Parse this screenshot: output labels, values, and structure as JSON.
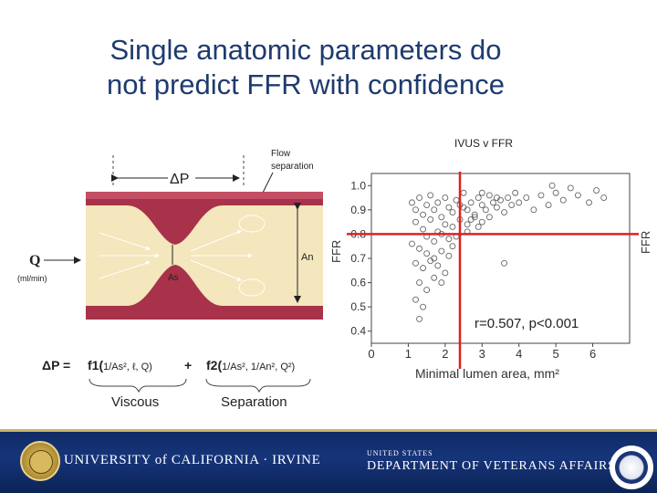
{
  "slide": {
    "title_line1": "Single anatomic parameters do",
    "title_line2": "not predict FFR with confidence",
    "caption": "IVUS v FFR"
  },
  "diagram": {
    "delta_p": "ΔP",
    "flow_label_1": "Flow",
    "flow_label_2": "separation",
    "q_symbol": "Q",
    "q_unit": "(ml/min)",
    "an_label": "An",
    "as_label": "As",
    "eq_lhs": "ΔP =",
    "eq_f1": "f1(",
    "eq_f1_args": "1/As², ℓ, Q)",
    "eq_plus": "+",
    "eq_f2": "f2(",
    "eq_f2_args": "1/As², 1/An², Q²)",
    "viscous": "Viscous",
    "separation": "Separation",
    "colors": {
      "wall": "#a8324a",
      "blood": "#f4e6bd"
    }
  },
  "chart_data": {
    "type": "scatter",
    "title": "",
    "xlabel": "Minimal lumen area, mm²",
    "ylabel": "FFR",
    "ylabel_right": "FFR",
    "xlim": [
      0,
      7
    ],
    "ylim": [
      0.35,
      1.05
    ],
    "x_ticks": [
      0,
      1,
      2,
      3,
      4,
      5,
      6
    ],
    "y_ticks": [
      0.4,
      0.5,
      0.6,
      0.7,
      0.8,
      0.9,
      1.0
    ],
    "y_tick_labels": [
      "0.4",
      "0.5",
      "0.6",
      "0.7",
      "0.8",
      "0.9",
      "1.0"
    ],
    "annotation": "r=0.507, p<0.001",
    "threshold_x": 2.4,
    "threshold_y": 0.8,
    "threshold_color": "#e02020",
    "grid": false,
    "points": [
      [
        1.1,
        0.93
      ],
      [
        1.2,
        0.9
      ],
      [
        1.3,
        0.95
      ],
      [
        1.4,
        0.88
      ],
      [
        1.5,
        0.92
      ],
      [
        1.6,
        0.96
      ],
      [
        1.7,
        0.9
      ],
      [
        1.8,
        0.93
      ],
      [
        1.9,
        0.87
      ],
      [
        2.0,
        0.95
      ],
      [
        2.1,
        0.91
      ],
      [
        2.2,
        0.89
      ],
      [
        2.3,
        0.94
      ],
      [
        2.4,
        0.92
      ],
      [
        2.5,
        0.97
      ],
      [
        2.6,
        0.9
      ],
      [
        2.7,
        0.93
      ],
      [
        2.8,
        0.88
      ],
      [
        2.9,
        0.95
      ],
      [
        3.0,
        0.92
      ],
      [
        3.1,
        0.9
      ],
      [
        3.2,
        0.96
      ],
      [
        3.3,
        0.93
      ],
      [
        3.4,
        0.91
      ],
      [
        3.5,
        0.94
      ],
      [
        3.6,
        0.89
      ],
      [
        3.7,
        0.95
      ],
      [
        3.8,
        0.92
      ],
      [
        3.9,
        0.97
      ],
      [
        4.0,
        0.93
      ],
      [
        4.2,
        0.95
      ],
      [
        4.4,
        0.9
      ],
      [
        4.6,
        0.96
      ],
      [
        4.8,
        0.92
      ],
      [
        5.0,
        0.97
      ],
      [
        5.2,
        0.94
      ],
      [
        5.4,
        0.99
      ],
      [
        5.6,
        0.96
      ],
      [
        5.9,
        0.93
      ],
      [
        6.1,
        0.98
      ],
      [
        6.3,
        0.95
      ],
      [
        4.9,
        1.0
      ],
      [
        1.2,
        0.85
      ],
      [
        1.4,
        0.82
      ],
      [
        1.6,
        0.86
      ],
      [
        1.8,
        0.81
      ],
      [
        2.0,
        0.84
      ],
      [
        2.2,
        0.83
      ],
      [
        2.4,
        0.86
      ],
      [
        2.6,
        0.84
      ],
      [
        2.8,
        0.87
      ],
      [
        3.0,
        0.85
      ],
      [
        1.5,
        0.79
      ],
      [
        1.7,
        0.77
      ],
      [
        1.9,
        0.8
      ],
      [
        2.1,
        0.78
      ],
      [
        2.3,
        0.79
      ],
      [
        2.6,
        0.81
      ],
      [
        1.1,
        0.76
      ],
      [
        1.3,
        0.74
      ],
      [
        1.5,
        0.72
      ],
      [
        1.7,
        0.7
      ],
      [
        1.9,
        0.73
      ],
      [
        2.1,
        0.71
      ],
      [
        1.2,
        0.68
      ],
      [
        1.4,
        0.66
      ],
      [
        1.6,
        0.69
      ],
      [
        1.8,
        0.67
      ],
      [
        2.0,
        0.64
      ],
      [
        1.3,
        0.6
      ],
      [
        1.5,
        0.57
      ],
      [
        1.7,
        0.62
      ],
      [
        1.2,
        0.53
      ],
      [
        1.4,
        0.5
      ],
      [
        1.3,
        0.45
      ],
      [
        1.9,
        0.6
      ],
      [
        2.2,
        0.75
      ],
      [
        3.6,
        0.68
      ],
      [
        2.5,
        0.91
      ],
      [
        2.7,
        0.86
      ],
      [
        2.9,
        0.83
      ],
      [
        3.2,
        0.87
      ],
      [
        3.4,
        0.95
      ],
      [
        3.0,
        0.97
      ]
    ]
  },
  "footer": {
    "university": "UNIVERSITY of CALIFORNIA · IRVINE",
    "va_line1": "UNITED STATES",
    "va_line2": "DEPARTMENT OF VETERANS AFFAIRS"
  }
}
